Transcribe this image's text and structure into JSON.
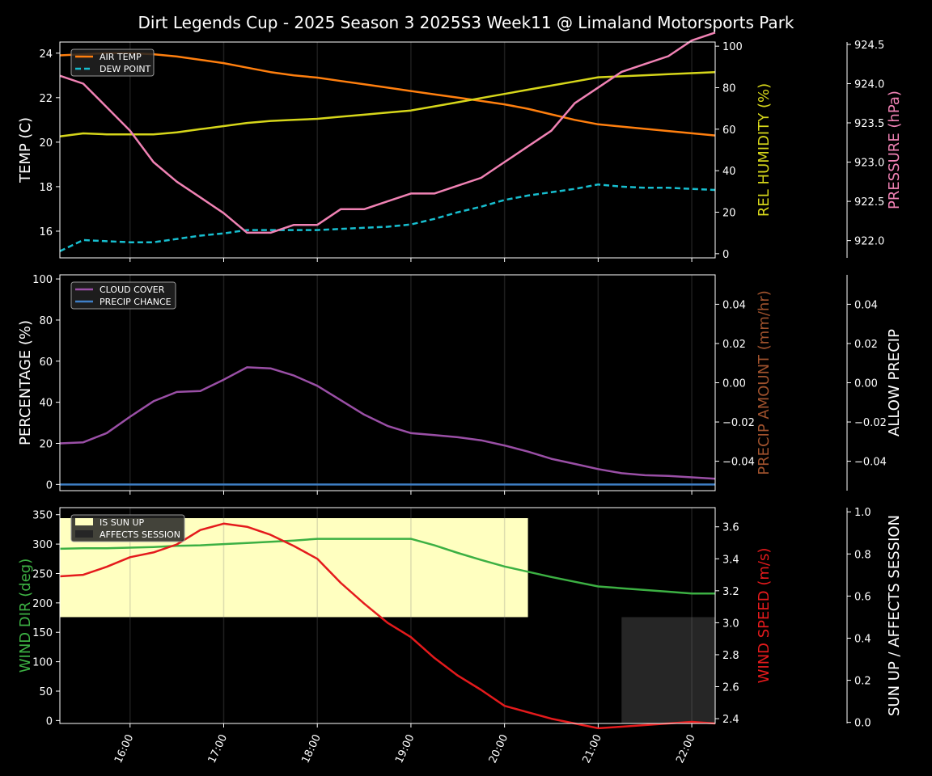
{
  "title": "Dirt Legends Cup - 2025 Season 3 2025S3 Week11 @ Limaland Motorsports Park",
  "colors": {
    "background": "#000000",
    "air_temp": "#ff7f0e",
    "dew_point": "#17becf",
    "rel_humidity": "#d6d61a",
    "pressure": "#f082b4",
    "cloud_cover": "#9a4fa6",
    "precip_chance": "#3f7fc6",
    "precip_amount": "#a0522d",
    "wind_dir": "#3cb043",
    "wind_speed": "#e41a1c",
    "sun_up": "#ffffc0",
    "affects_session": "#262626"
  },
  "x_ticks": [
    "16:00",
    "17:00",
    "18:00",
    "19:00",
    "20:00",
    "21:00",
    "22:00"
  ],
  "chart_data": [
    {
      "type": "line",
      "panel": "temperature",
      "x": [
        "15:15",
        "15:30",
        "15:45",
        "16:00",
        "16:15",
        "16:30",
        "16:45",
        "17:00",
        "17:15",
        "17:30",
        "17:45",
        "18:00",
        "18:15",
        "18:30",
        "18:45",
        "19:00",
        "19:15",
        "19:30",
        "19:45",
        "20:00",
        "20:15",
        "20:30",
        "20:45",
        "21:00",
        "21:15",
        "21:30",
        "21:45",
        "22:00",
        "22:15"
      ],
      "ylabel": "TEMP (C)",
      "ylabel_right": "REL HUMIDITY (%)",
      "ylabel_far_right": "PRESSURE (hPa)",
      "ylim": [
        14.8,
        24.5
      ],
      "ylim_right": [
        -2,
        102
      ],
      "ylim_far_right": [
        921.78,
        924.53
      ],
      "yticks": [
        "16",
        "18",
        "20",
        "22",
        "24"
      ],
      "yticks_right": [
        "0",
        "20",
        "40",
        "60",
        "80",
        "100"
      ],
      "yticks_far_right": [
        "922.0",
        "922.5",
        "923.0",
        "923.5",
        "924.0",
        "924.5"
      ],
      "series": [
        {
          "name": "AIR TEMP",
          "axis": "left",
          "style": "solid",
          "values": [
            23.9,
            23.95,
            24.0,
            24.0,
            23.95,
            23.85,
            23.7,
            23.55,
            23.35,
            23.15,
            23.0,
            22.9,
            22.75,
            22.6,
            22.45,
            22.3,
            22.15,
            22.0,
            21.85,
            21.7,
            21.5,
            21.25,
            21.0,
            20.8,
            20.7,
            20.6,
            20.5,
            20.4,
            20.3
          ]
        },
        {
          "name": "DEW POINT",
          "axis": "left",
          "style": "dashed",
          "values": [
            15.1,
            15.6,
            15.55,
            15.5,
            15.5,
            15.65,
            15.8,
            15.9,
            16.05,
            16.05,
            16.05,
            16.05,
            16.1,
            16.15,
            16.2,
            16.3,
            16.55,
            16.85,
            17.1,
            17.4,
            17.6,
            17.75,
            17.9,
            18.1,
            18.0,
            17.95,
            17.95,
            17.9,
            17.85
          ]
        },
        {
          "name": "REL HUMIDITY",
          "axis": "right",
          "style": "solid",
          "values": [
            56.5,
            58.0,
            57.5,
            57.5,
            57.5,
            58.5,
            60.0,
            61.5,
            63.0,
            64.0,
            64.5,
            65.0,
            66.0,
            67.0,
            68.0,
            69.0,
            71.0,
            73.0,
            75.0,
            77.0,
            79.0,
            81.0,
            83.0,
            85.0,
            85.5,
            86.0,
            86.5,
            87.0,
            87.5
          ]
        },
        {
          "name": "PRESSURE",
          "axis": "far_right",
          "style": "solid",
          "values": [
            924.1,
            924.0,
            923.7,
            923.4,
            923.0,
            922.75,
            922.55,
            922.35,
            922.1,
            922.1,
            922.2,
            922.2,
            922.4,
            922.4,
            922.5,
            922.6,
            922.6,
            922.7,
            922.8,
            923.0,
            923.2,
            923.4,
            923.75,
            923.95,
            924.15,
            924.25,
            924.35,
            924.55,
            924.65
          ]
        }
      ]
    },
    {
      "type": "line",
      "panel": "precipitation",
      "x": [
        "15:15",
        "15:30",
        "15:45",
        "16:00",
        "16:15",
        "16:30",
        "16:45",
        "17:00",
        "17:15",
        "17:30",
        "17:45",
        "18:00",
        "18:15",
        "18:30",
        "18:45",
        "19:00",
        "19:15",
        "19:30",
        "19:45",
        "20:00",
        "20:15",
        "20:30",
        "20:45",
        "21:00",
        "21:15",
        "21:30",
        "21:45",
        "22:00",
        "22:15"
      ],
      "ylabel": "PERCENTAGE (%)",
      "ylabel_right": "PRECIP AMOUNT (mm/hr)",
      "ylabel_far_right": "ALLOW PRECIP",
      "ylim": [
        -3,
        102
      ],
      "ylim_right": [
        -0.055,
        0.055
      ],
      "ylim_far_right": [
        -0.055,
        0.055
      ],
      "yticks": [
        "0",
        "20",
        "40",
        "60",
        "80",
        "100"
      ],
      "yticks_right": [
        "−0.04",
        "−0.02",
        "0.00",
        "0.02",
        "0.04"
      ],
      "yticks_far_right": [
        "−0.04",
        "−0.02",
        "0.00",
        "0.02",
        "0.04"
      ],
      "series": [
        {
          "name": "CLOUD COVER",
          "axis": "left",
          "style": "solid",
          "values": [
            20,
            20.5,
            25,
            33,
            40.5,
            45,
            45.5,
            51,
            57,
            56.5,
            53,
            48,
            41,
            34,
            28.5,
            25,
            24,
            23,
            21.5,
            19,
            16,
            12.5,
            10,
            7.5,
            5.5,
            4.5,
            4.2,
            3.5,
            2.8
          ]
        },
        {
          "name": "PRECIP CHANCE",
          "axis": "left",
          "style": "solid",
          "values": [
            0,
            0,
            0,
            0,
            0,
            0,
            0,
            0,
            0,
            0,
            0,
            0,
            0,
            0,
            0,
            0,
            0,
            0,
            0,
            0,
            0,
            0,
            0,
            0,
            0,
            0,
            0,
            0,
            0
          ]
        }
      ]
    },
    {
      "type": "line",
      "panel": "wind",
      "x": [
        "15:15",
        "15:30",
        "15:45",
        "16:00",
        "16:15",
        "16:30",
        "16:45",
        "17:00",
        "17:15",
        "17:30",
        "17:45",
        "18:00",
        "18:15",
        "18:30",
        "18:45",
        "19:00",
        "19:15",
        "19:30",
        "19:45",
        "20:00",
        "20:15",
        "20:30",
        "20:45",
        "21:00",
        "21:15",
        "21:30",
        "21:45",
        "22:00",
        "22:15"
      ],
      "ylabel": "WIND DIR (deg)",
      "ylabel_right": "WIND SPEED (m/s)",
      "ylabel_far_right": "SUN UP / AFFECTS SESSION",
      "ylim": [
        -5,
        362
      ],
      "ylim_right": [
        2.37,
        3.72
      ],
      "ylim_far_right": [
        -0.005,
        1.02
      ],
      "yticks": [
        "0",
        "50",
        "100",
        "150",
        "200",
        "250",
        "300",
        "350"
      ],
      "yticks_right": [
        "2.4",
        "2.6",
        "2.8",
        "3.0",
        "3.2",
        "3.4",
        "3.6"
      ],
      "yticks_far_right": [
        "0.0",
        "0.2",
        "0.4",
        "0.6",
        "0.8",
        "1.0"
      ],
      "series": [
        {
          "name": "WIND DIR",
          "axis": "left",
          "style": "solid",
          "values": [
            292,
            293,
            293,
            294,
            295,
            297,
            298,
            300,
            302,
            304,
            306,
            309,
            309,
            309,
            309,
            309,
            298,
            285,
            273,
            262,
            253,
            244,
            236,
            228,
            225,
            222,
            219,
            216,
            216
          ]
        },
        {
          "name": "WIND SPEED",
          "axis": "right",
          "style": "solid",
          "values": [
            3.29,
            3.3,
            3.35,
            3.41,
            3.44,
            3.49,
            3.58,
            3.62,
            3.6,
            3.55,
            3.48,
            3.4,
            3.25,
            3.12,
            3.0,
            2.91,
            2.78,
            2.67,
            2.58,
            2.48,
            2.44,
            2.4,
            2.37,
            2.34,
            2.35,
            2.36,
            2.37,
            2.38,
            2.37
          ]
        }
      ],
      "bands": [
        {
          "name": "IS SUN UP",
          "from": "15:15",
          "to": "20:15",
          "level": 1
        },
        {
          "name": "AFFECTS SESSION",
          "from": "21:15",
          "to": "22:15",
          "level": 1
        }
      ]
    }
  ]
}
